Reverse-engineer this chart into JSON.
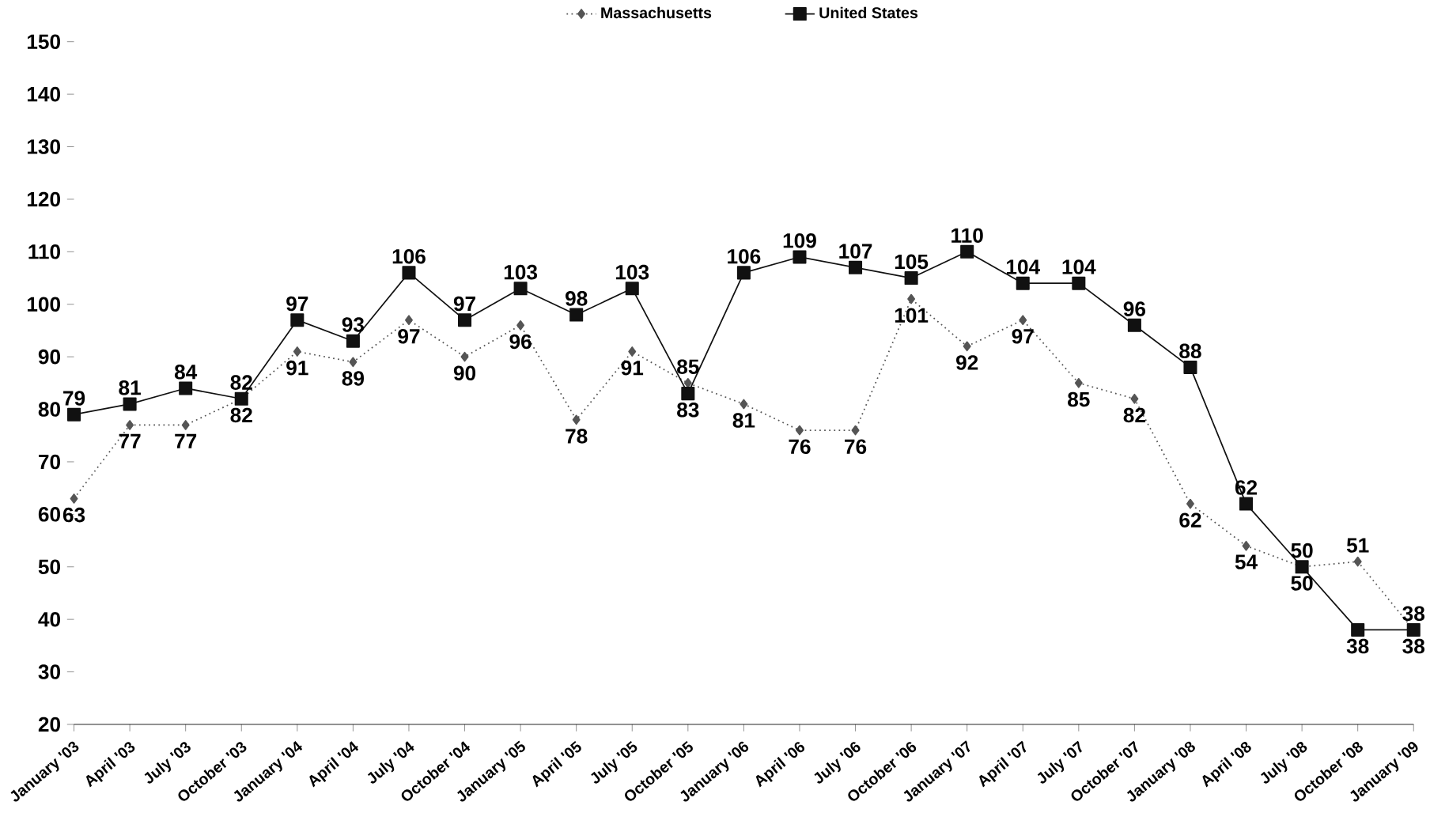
{
  "chart_data": {
    "type": "line",
    "categories": [
      "January '03",
      "April '03",
      "July '03",
      "October '03",
      "January '04",
      "April '04",
      "July '04",
      "October '04",
      "January '05",
      "April '05",
      "July '05",
      "October '05",
      "January '06",
      "April '06",
      "July '06",
      "October '06",
      "January '07",
      "April '07",
      "July '07",
      "October '07",
      "January '08",
      "April '08",
      "July '08",
      "October '08",
      "January '09"
    ],
    "series": [
      {
        "name": "Massachusetts",
        "color": "#555555",
        "line_style": "dotted",
        "marker": "diamond",
        "values": [
          63,
          77,
          77,
          82,
          91,
          89,
          97,
          90,
          96,
          78,
          91,
          85,
          81,
          76,
          76,
          101,
          92,
          97,
          85,
          82,
          62,
          54,
          50,
          51,
          38
        ]
      },
      {
        "name": "United States",
        "color": "#111111",
        "line_style": "solid",
        "marker": "square",
        "values": [
          79,
          81,
          84,
          82,
          97,
          93,
          106,
          97,
          103,
          98,
          103,
          83,
          106,
          109,
          107,
          105,
          110,
          104,
          104,
          96,
          88,
          62,
          50,
          38,
          38
        ]
      }
    ],
    "ylim": [
      20,
      150
    ],
    "yticks": [
      20,
      30,
      40,
      50,
      60,
      70,
      80,
      90,
      100,
      110,
      120,
      130,
      140,
      150
    ],
    "data_labels": true,
    "legend": "top",
    "grid": false
  }
}
